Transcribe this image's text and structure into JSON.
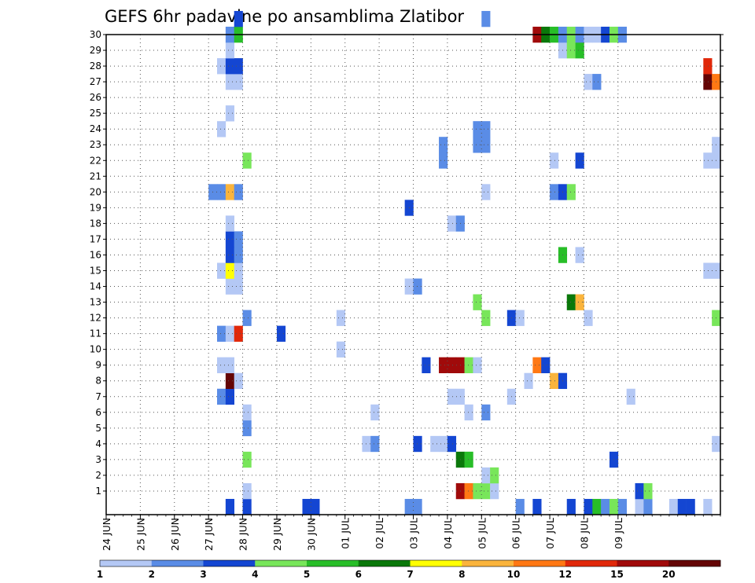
{
  "title": "GEFS 6hr padavine po ansamblima Zlatibor",
  "chart_data": {
    "type": "heatmap",
    "title": "GEFS 6hr padavine po ansamblima Zlatibor",
    "xlabel": "",
    "ylabel": "",
    "x_ticks": [
      "24 JUN",
      "25 JUN",
      "26 JUN",
      "27 JUN",
      "28 JUN",
      "29 JUN",
      "30 JUN",
      "01 JUL",
      "02 JUL",
      "03 JUL",
      "04 JUL",
      "05 JUL",
      "06 JUL",
      "07 JUL",
      "08 JUL",
      "09 JUL"
    ],
    "y_ticks": [
      1,
      2,
      3,
      4,
      5,
      6,
      7,
      8,
      9,
      10,
      11,
      12,
      13,
      14,
      15,
      16,
      17,
      18,
      19,
      20,
      21,
      22,
      23,
      24,
      25,
      26,
      27,
      28,
      29,
      30
    ],
    "step_hours": 6,
    "legend_placement": "bottom",
    "legend": {
      "labels": [
        "1",
        "2",
        "3",
        "4",
        "5",
        "6",
        "7",
        "8",
        "10",
        "12",
        "15",
        "20"
      ],
      "colors": [
        "#b4c8f5",
        "#5a8ce6",
        "#1446d2",
        "#78e65a",
        "#28be28",
        "#0a780a",
        "#ffff00",
        "#fab43c",
        "#ff7814",
        "#e1280a",
        "#a00a0a",
        "#640505"
      ]
    },
    "cells": [
      [
        0,
        14,
        3
      ],
      [
        0,
        16,
        3
      ],
      [
        0,
        23,
        3
      ],
      [
        0,
        24,
        3
      ],
      [
        0,
        35,
        2
      ],
      [
        0,
        36,
        2
      ],
      [
        0,
        48,
        2
      ],
      [
        0,
        50,
        3
      ],
      [
        0,
        54,
        3
      ],
      [
        0,
        56,
        3
      ],
      [
        0,
        57,
        5
      ],
      [
        0,
        58,
        2
      ],
      [
        0,
        59,
        4
      ],
      [
        0,
        60,
        2
      ],
      [
        0,
        62,
        1
      ],
      [
        0,
        63,
        2
      ],
      [
        0,
        66,
        1
      ],
      [
        0,
        67,
        3
      ],
      [
        0,
        68,
        3
      ],
      [
        0,
        70,
        1
      ],
      [
        1,
        16,
        1
      ],
      [
        1,
        41,
        11
      ],
      [
        1,
        42,
        9
      ],
      [
        1,
        43,
        4
      ],
      [
        1,
        44,
        4
      ],
      [
        1,
        45,
        1
      ],
      [
        1,
        62,
        3
      ],
      [
        1,
        63,
        4
      ],
      [
        2,
        44,
        1
      ],
      [
        2,
        45,
        4
      ],
      [
        3,
        16,
        4
      ],
      [
        3,
        41,
        6
      ],
      [
        3,
        42,
        5
      ],
      [
        3,
        59,
        3
      ],
      [
        4,
        30,
        1
      ],
      [
        4,
        31,
        2
      ],
      [
        4,
        36,
        3
      ],
      [
        4,
        38,
        1
      ],
      [
        4,
        39,
        1
      ],
      [
        4,
        40,
        3
      ],
      [
        4,
        71,
        1
      ],
      [
        5,
        16,
        2
      ],
      [
        6,
        16,
        1
      ],
      [
        6,
        31,
        1
      ],
      [
        6,
        42,
        1
      ],
      [
        6,
        44,
        2
      ],
      [
        7,
        13,
        2
      ],
      [
        7,
        14,
        3
      ],
      [
        7,
        40,
        1
      ],
      [
        7,
        41,
        1
      ],
      [
        7,
        47,
        1
      ],
      [
        7,
        61,
        1
      ],
      [
        8,
        14,
        12
      ],
      [
        8,
        15,
        1
      ],
      [
        8,
        49,
        1
      ],
      [
        8,
        52,
        8
      ],
      [
        8,
        53,
        3
      ],
      [
        9,
        13,
        1
      ],
      [
        9,
        14,
        1
      ],
      [
        9,
        37,
        3
      ],
      [
        9,
        39,
        11
      ],
      [
        9,
        40,
        11
      ],
      [
        9,
        41,
        11
      ],
      [
        9,
        42,
        4
      ],
      [
        9,
        43,
        1
      ],
      [
        9,
        50,
        9
      ],
      [
        9,
        51,
        3
      ],
      [
        10,
        27,
        1
      ],
      [
        11,
        13,
        2
      ],
      [
        11,
        14,
        1
      ],
      [
        11,
        15,
        10
      ],
      [
        11,
        20,
        3
      ],
      [
        12,
        16,
        2
      ],
      [
        12,
        27,
        1
      ],
      [
        12,
        44,
        4
      ],
      [
        12,
        47,
        3
      ],
      [
        12,
        48,
        1
      ],
      [
        12,
        56,
        1
      ],
      [
        12,
        71,
        4
      ],
      [
        13,
        43,
        4
      ],
      [
        13,
        54,
        6
      ],
      [
        13,
        55,
        8
      ],
      [
        14,
        14,
        1
      ],
      [
        14,
        15,
        1
      ],
      [
        14,
        35,
        1
      ],
      [
        14,
        36,
        2
      ],
      [
        15,
        13,
        1
      ],
      [
        15,
        14,
        7
      ],
      [
        15,
        15,
        1
      ],
      [
        15,
        70,
        1
      ],
      [
        15,
        71,
        1
      ],
      [
        16,
        14,
        3
      ],
      [
        16,
        15,
        2
      ],
      [
        16,
        53,
        5
      ],
      [
        16,
        55,
        1
      ],
      [
        17,
        14,
        3
      ],
      [
        17,
        15,
        2
      ],
      [
        18,
        14,
        1
      ],
      [
        18,
        40,
        1
      ],
      [
        18,
        41,
        2
      ],
      [
        19,
        35,
        3
      ],
      [
        20,
        12,
        2
      ],
      [
        20,
        13,
        2
      ],
      [
        20,
        14,
        8
      ],
      [
        20,
        15,
        2
      ],
      [
        20,
        44,
        1
      ],
      [
        20,
        52,
        2
      ],
      [
        20,
        53,
        3
      ],
      [
        20,
        54,
        4
      ],
      [
        22,
        16,
        4
      ],
      [
        22,
        39,
        2
      ],
      [
        22,
        52,
        1
      ],
      [
        22,
        55,
        3
      ],
      [
        22,
        70,
        1
      ],
      [
        22,
        71,
        1
      ],
      [
        23,
        39,
        2
      ],
      [
        23,
        43,
        2
      ],
      [
        23,
        44,
        2
      ],
      [
        23,
        71,
        1
      ],
      [
        24,
        13,
        1
      ],
      [
        24,
        43,
        2
      ],
      [
        24,
        44,
        2
      ],
      [
        25,
        14,
        1
      ],
      [
        27,
        14,
        1
      ],
      [
        27,
        15,
        1
      ],
      [
        27,
        56,
        1
      ],
      [
        27,
        57,
        2
      ],
      [
        27,
        70,
        12
      ],
      [
        27,
        71,
        9
      ],
      [
        28,
        13,
        1
      ],
      [
        28,
        14,
        3
      ],
      [
        28,
        15,
        3
      ],
      [
        28,
        70,
        10
      ],
      [
        29,
        14,
        1
      ],
      [
        29,
        53,
        1
      ],
      [
        29,
        54,
        4
      ],
      [
        29,
        55,
        5
      ],
      [
        30,
        14,
        2
      ],
      [
        30,
        15,
        5
      ],
      [
        30,
        50,
        11
      ],
      [
        30,
        51,
        6
      ],
      [
        30,
        52,
        5
      ],
      [
        30,
        53,
        2
      ],
      [
        30,
        54,
        4
      ],
      [
        30,
        55,
        2
      ],
      [
        30,
        56,
        1
      ],
      [
        30,
        57,
        1
      ],
      [
        30,
        58,
        3
      ],
      [
        30,
        59,
        4
      ],
      [
        30,
        60,
        2
      ],
      [
        31,
        15,
        3
      ],
      [
        31,
        44,
        2
      ]
    ]
  }
}
